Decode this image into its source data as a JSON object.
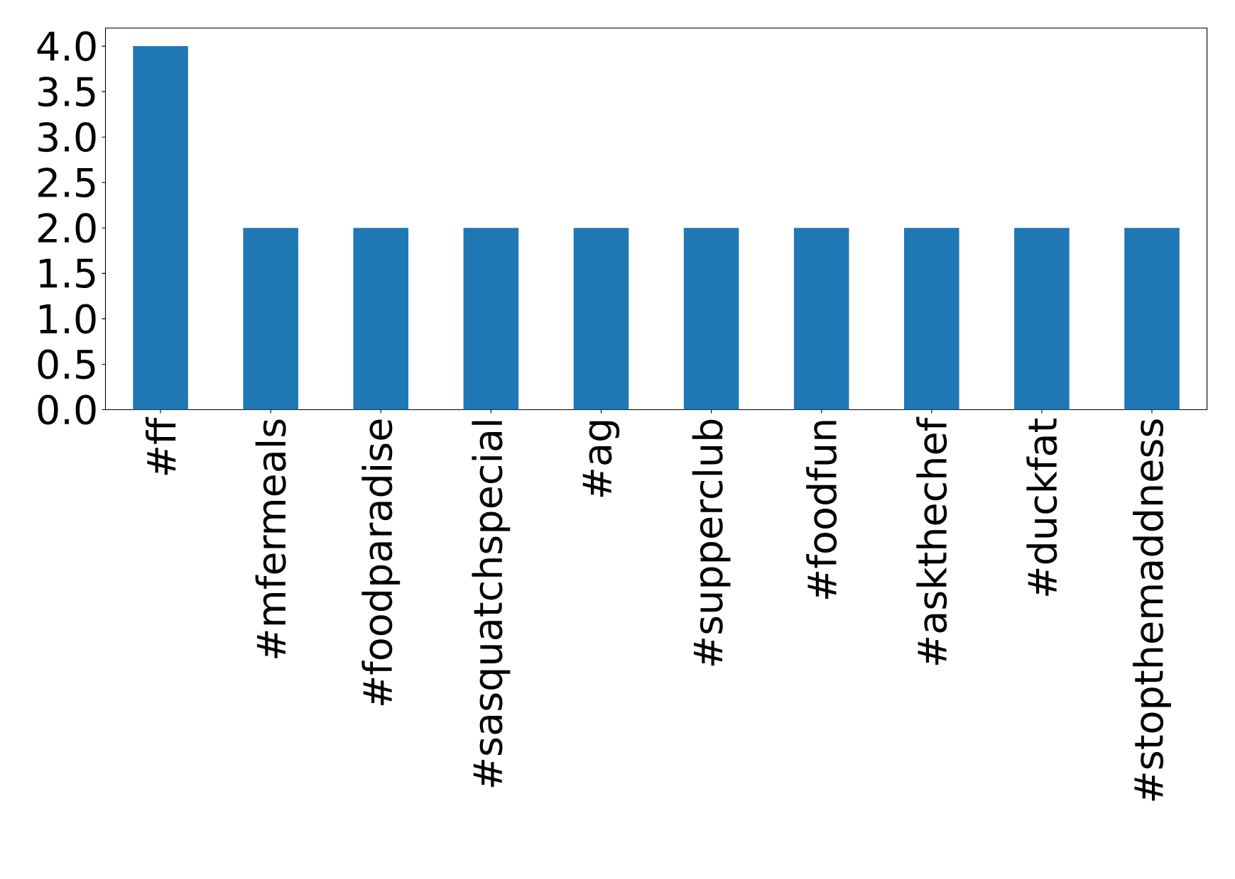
{
  "chart_data": {
    "type": "bar",
    "categories": [
      "#ff",
      "#mfermeals",
      "#foodparadise",
      "#sasquatchspecial",
      "#ag",
      "#supperclub",
      "#foodfun",
      "#askthechef",
      "#duckfat",
      "#stopthemaddness"
    ],
    "values": [
      4,
      2,
      2,
      2,
      2,
      2,
      2,
      2,
      2,
      2
    ],
    "color": "#1f77b4",
    "ylim": [
      0,
      4.2
    ],
    "yticks": [
      {
        "value": 0,
        "label": "0.0"
      },
      {
        "value": 0.5,
        "label": "0.5"
      },
      {
        "value": 1,
        "label": "1.0"
      },
      {
        "value": 1.5,
        "label": "1.5"
      },
      {
        "value": 2,
        "label": "2.0"
      },
      {
        "value": 2.5,
        "label": "2.5"
      },
      {
        "value": 3,
        "label": "3.0"
      },
      {
        "value": 3.5,
        "label": "3.5"
      },
      {
        "value": 4,
        "label": "4.0"
      }
    ]
  }
}
